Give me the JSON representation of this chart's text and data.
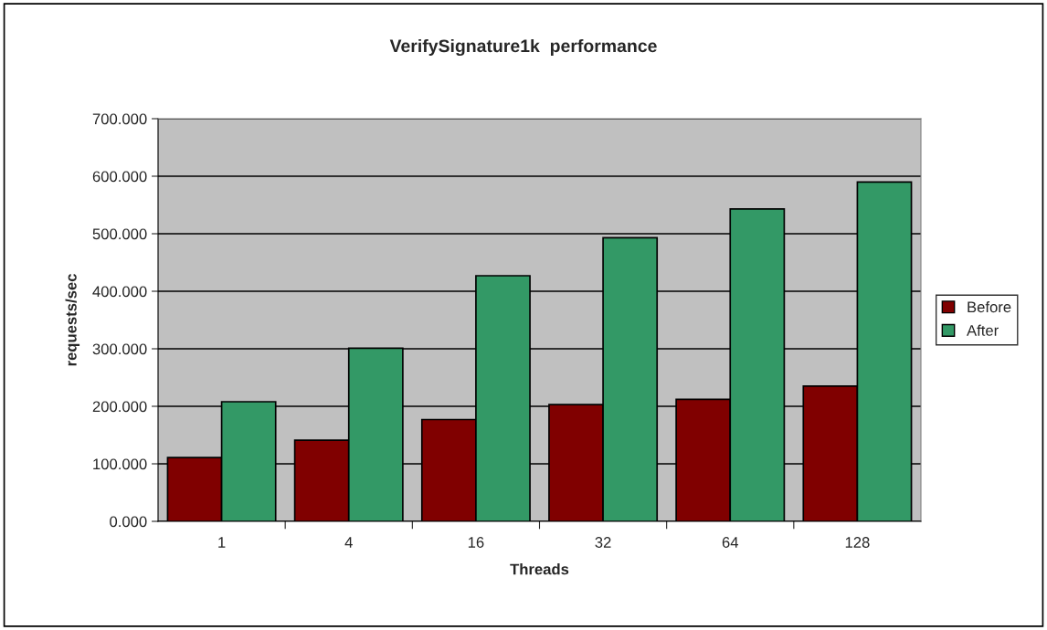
{
  "chart_data": {
    "type": "bar",
    "title": "VerifySignature1k  performance",
    "xlabel": "Threads",
    "ylabel": "requests/sec",
    "categories": [
      "1",
      "4",
      "16",
      "32",
      "64",
      "128"
    ],
    "series": [
      {
        "name": "Before",
        "color": "#800000",
        "values": [
          111,
          141,
          177,
          203,
          212,
          235
        ]
      },
      {
        "name": "After",
        "color": "#339966",
        "values": [
          208,
          301,
          427,
          493,
          543,
          590
        ]
      }
    ],
    "ylim": [
      0,
      700
    ],
    "yticks": [
      {
        "value": 0,
        "label": "0.000"
      },
      {
        "value": 100,
        "label": "100.000"
      },
      {
        "value": 200,
        "label": "200.000"
      },
      {
        "value": 300,
        "label": "300.000"
      },
      {
        "value": 400,
        "label": "400.000"
      },
      {
        "value": 500,
        "label": "500.000"
      },
      {
        "value": 600,
        "label": "600.000"
      },
      {
        "value": 700,
        "label": "700.000"
      }
    ],
    "grid": "y",
    "legend": "right"
  }
}
